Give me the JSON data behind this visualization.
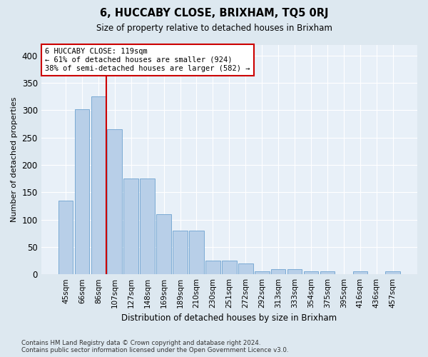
{
  "title": "6, HUCCABY CLOSE, BRIXHAM, TQ5 0RJ",
  "subtitle": "Size of property relative to detached houses in Brixham",
  "xlabel": "Distribution of detached houses by size in Brixham",
  "ylabel": "Number of detached properties",
  "categories": [
    "45sqm",
    "66sqm",
    "86sqm",
    "107sqm",
    "127sqm",
    "148sqm",
    "169sqm",
    "189sqm",
    "210sqm",
    "230sqm",
    "251sqm",
    "272sqm",
    "292sqm",
    "313sqm",
    "333sqm",
    "354sqm",
    "375sqm",
    "395sqm",
    "416sqm",
    "436sqm",
    "457sqm"
  ],
  "bar_heights": [
    135,
    302,
    325,
    265,
    175,
    175,
    110,
    80,
    80,
    25,
    25,
    20,
    5,
    10,
    10,
    5,
    5,
    0,
    5,
    0,
    5
  ],
  "bar_color": "#b8cfe8",
  "bar_edge_color": "#7aaad4",
  "vline_pos": 3.0,
  "vline_color": "#cc0000",
  "annotation_text": "6 HUCCABY CLOSE: 119sqm\n← 61% of detached houses are smaller (924)\n38% of semi-detached houses are larger (582) →",
  "ylim_max": 420,
  "yticks": [
    0,
    50,
    100,
    150,
    200,
    250,
    300,
    350,
    400
  ],
  "bg_color": "#dde8f0",
  "plot_bg_color": "#e8f0f8",
  "grid_color": "#ffffff",
  "footer_line1": "Contains HM Land Registry data © Crown copyright and database right 2024.",
  "footer_line2": "Contains public sector information licensed under the Open Government Licence v3.0."
}
